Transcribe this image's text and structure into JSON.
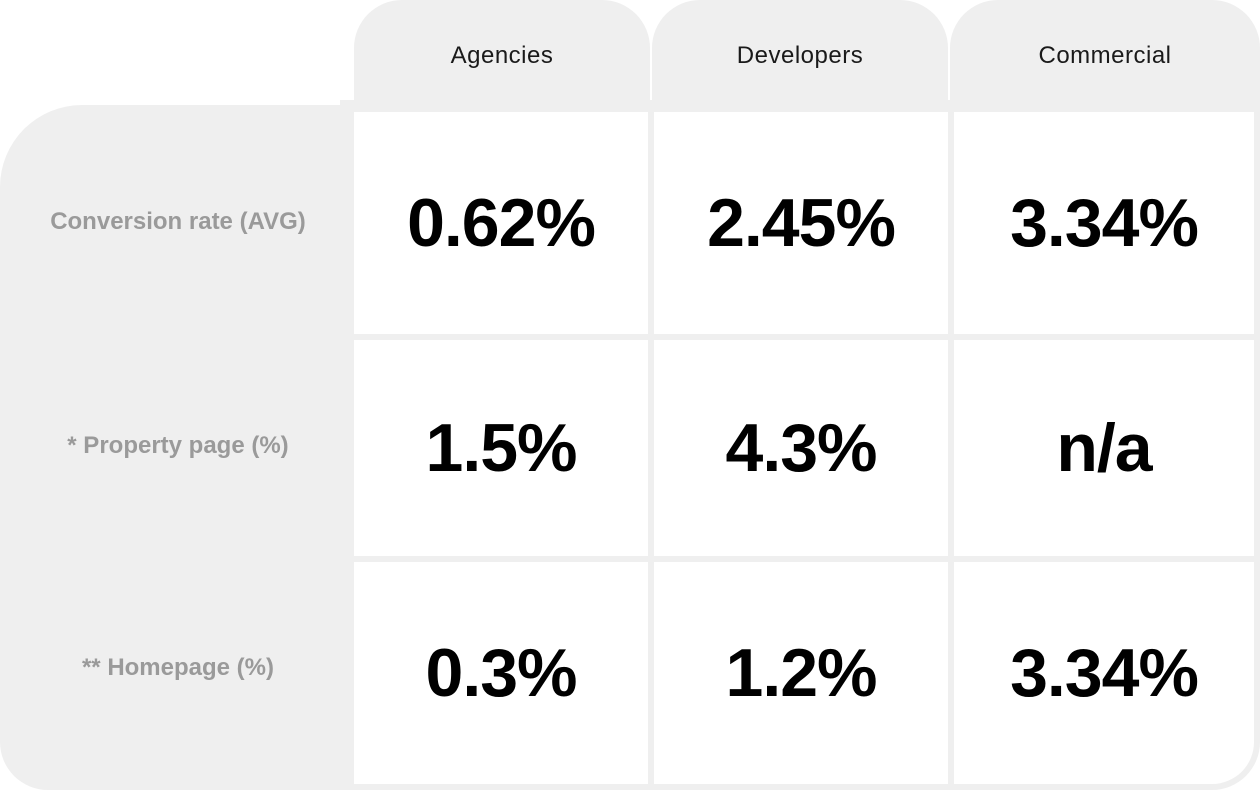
{
  "columns": [
    "Agencies",
    "Developers",
    "Commercial"
  ],
  "rows": [
    {
      "label": "Conversion rate (AVG)",
      "values": [
        "0.62%",
        "2.45%",
        "3.34%"
      ]
    },
    {
      "label": "* Property page (%)",
      "values": [
        "1.5%",
        "4.3%",
        "n/a"
      ]
    },
    {
      "label": "** Homepage (%)",
      "values": [
        "0.3%",
        "1.2%",
        "3.34%"
      ]
    }
  ]
}
